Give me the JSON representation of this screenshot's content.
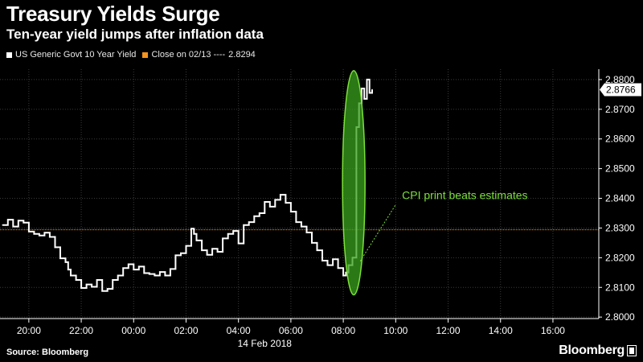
{
  "header": {
    "title": "Treasury Yields Surge",
    "subtitle": "Ten-year yield jumps after inflation data"
  },
  "legend": {
    "series_label": "US Generic Govt 10 Year Yield",
    "close_label": "Close on 02/13 ---- ",
    "close_value": "2.8294",
    "series_color": "#ffffff",
    "close_color": "#f7931e"
  },
  "footer": {
    "source": "Source: Bloomberg",
    "brand": "Bloomberg"
  },
  "chart_data": {
    "type": "line",
    "ylim": [
      2.7995,
      2.8835
    ],
    "yticks": [
      2.8,
      2.81,
      2.82,
      2.83,
      2.84,
      2.85,
      2.86,
      2.87,
      2.88
    ],
    "ytick_labels": [
      "2.8000",
      "2.8100",
      "2.8200",
      "2.8300",
      "2.8400",
      "2.8500",
      "2.8600",
      "2.8700",
      "2.8800"
    ],
    "xlim_hours": [
      18.9,
      19.0
    ],
    "xticks": [
      20,
      22,
      24,
      26,
      28,
      30,
      32,
      34,
      36,
      38,
      40
    ],
    "xtick_labels": [
      "20:00",
      "22:00",
      "00:00",
      "02:00",
      "04:00",
      "06:00",
      "08:00",
      "10:00",
      "12:00",
      "14:00",
      "16:00"
    ],
    "date_label": "14 Feb 2018",
    "last_value_label": "2.8766",
    "last_value": 2.8766,
    "close_line": 2.8294,
    "annotation": "CPI print beats estimates",
    "annotation_color": "#7be03a",
    "series": [
      {
        "name": "US Generic Govt 10 Year Yield",
        "x": [
          19.0,
          19.2,
          19.4,
          19.6,
          19.8,
          20.0,
          20.2,
          20.4,
          20.6,
          20.8,
          21.0,
          21.2,
          21.4,
          21.5,
          21.6,
          21.8,
          22.0,
          22.2,
          22.4,
          22.6,
          22.8,
          23.0,
          23.2,
          23.4,
          23.6,
          23.8,
          24.0,
          24.2,
          24.4,
          24.6,
          24.8,
          25.0,
          25.2,
          25.4,
          25.6,
          25.8,
          26.0,
          26.2,
          26.3,
          26.4,
          26.6,
          26.8,
          27.0,
          27.2,
          27.4,
          27.6,
          27.8,
          28.0,
          28.2,
          28.4,
          28.6,
          28.8,
          29.0,
          29.2,
          29.4,
          29.6,
          29.8,
          30.0,
          30.2,
          30.4,
          30.6,
          30.8,
          31.0,
          31.2,
          31.4,
          31.6,
          31.8,
          32.0,
          32.1,
          32.2,
          32.35,
          32.5,
          32.6,
          32.7,
          32.8,
          32.9,
          33.0,
          33.1
        ],
        "values": [
          2.831,
          2.8328,
          2.8305,
          2.8325,
          2.8318,
          2.8288,
          2.828,
          2.8275,
          2.8284,
          2.827,
          2.8235,
          2.8198,
          2.8185,
          2.816,
          2.814,
          2.8125,
          2.8098,
          2.811,
          2.8102,
          2.8125,
          2.8088,
          2.8095,
          2.8125,
          2.814,
          2.8165,
          2.8178,
          2.816,
          2.817,
          2.8148,
          2.8145,
          2.814,
          2.8152,
          2.814,
          2.8162,
          2.8208,
          2.8215,
          2.824,
          2.8298,
          2.828,
          2.8258,
          2.8225,
          2.821,
          2.823,
          2.822,
          2.8265,
          2.828,
          2.829,
          2.8248,
          2.831,
          2.832,
          2.834,
          2.835,
          2.8388,
          2.8372,
          2.8395,
          2.8412,
          2.8385,
          2.8355,
          2.832,
          2.8305,
          2.8285,
          2.825,
          2.8225,
          2.819,
          2.8175,
          2.8195,
          2.8165,
          2.814,
          2.815,
          2.8175,
          2.82,
          2.864,
          2.872,
          2.877,
          2.8735,
          2.88,
          2.8755,
          2.8766
        ]
      }
    ]
  }
}
